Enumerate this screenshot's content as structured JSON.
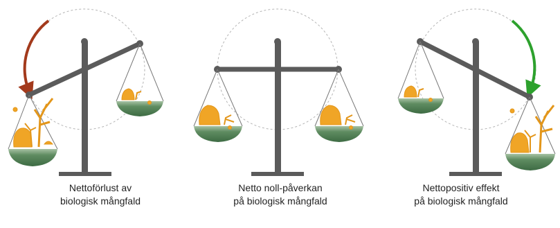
{
  "captions": {
    "net_loss": {
      "line1": "Nettoförlust av",
      "line2": "biologisk mångfald"
    },
    "no_net_impact": {
      "line1": "Netto noll-påverkan",
      "line2": "på biologisk mångfald"
    },
    "net_positive": {
      "line1": "Nettopositiv effekt",
      "line2": "på biologisk mångfald"
    }
  },
  "colors": {
    "scale": "#5b5b5b",
    "guide_circle": "#b5b5b5",
    "pan": "#4f7c53",
    "pan_light": "#8fb08e",
    "biodiversity": "#f0a526",
    "loss_arrow": "#a33a1c",
    "gain_arrow": "#2da12d"
  },
  "icons": [
    "scale-icon",
    "biodiversity-icon",
    "arrow-icon"
  ]
}
